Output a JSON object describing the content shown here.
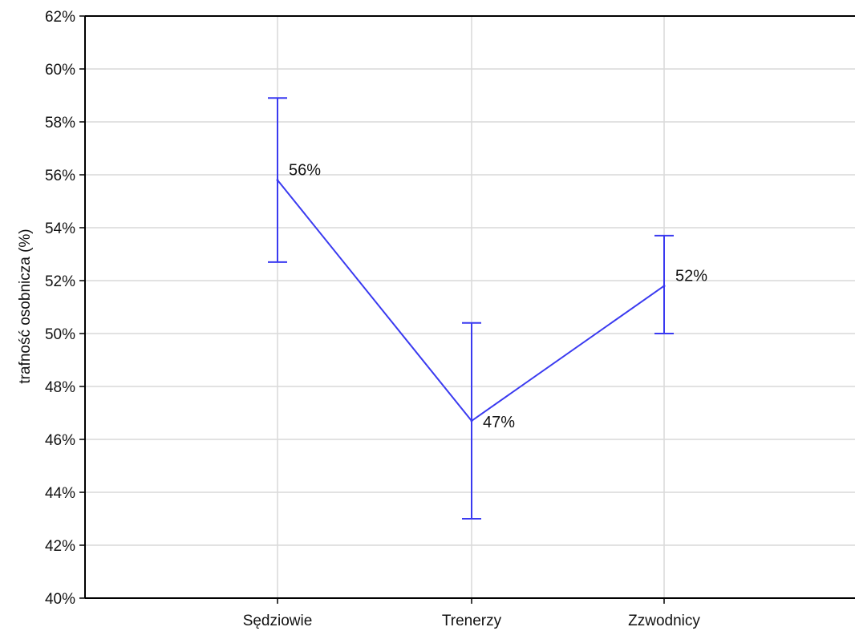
{
  "chart_data": {
    "type": "line",
    "title": "",
    "xlabel": "",
    "ylabel": "trafność osobnicza (%)",
    "categories": [
      "Sędziowie",
      "Trenerzy",
      "Zzwodnicy"
    ],
    "series": [
      {
        "values": [
          55.8,
          46.7,
          51.8
        ],
        "error_low": [
          52.7,
          43.0,
          50.0
        ],
        "error_high": [
          58.9,
          50.4,
          53.7
        ],
        "data_labels": [
          "56%",
          "47%",
          "52%"
        ],
        "color": "#3a3af0"
      }
    ],
    "ylim": [
      40,
      62
    ],
    "y_ticks": [
      40,
      42,
      44,
      46,
      48,
      50,
      52,
      54,
      56,
      58,
      60,
      62
    ],
    "y_tick_labels": [
      "40%",
      "42%",
      "44%",
      "46%",
      "48%",
      "50%",
      "52%",
      "54%",
      "56%",
      "58%",
      "60%",
      "62%"
    ],
    "grid": true,
    "legend": "none",
    "colors": {
      "line": "#3a3af0",
      "grid": "#d9d9d9",
      "axis": "#000000"
    }
  }
}
